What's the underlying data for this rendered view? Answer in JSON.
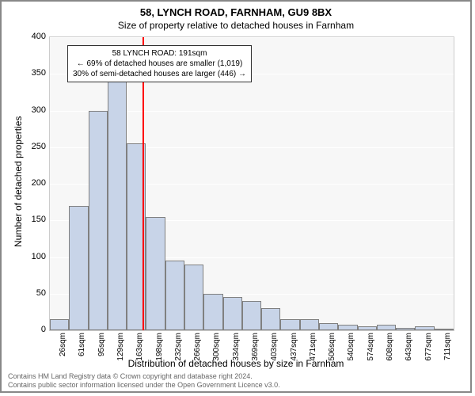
{
  "header": {
    "address": "58, LYNCH ROAD, FARNHAM, GU9 8BX",
    "subtitle": "Size of property relative to detached houses in Farnham"
  },
  "chart": {
    "type": "histogram",
    "ylabel": "Number of detached properties",
    "xlabel": "Distribution of detached houses by size in Farnham",
    "ylim": [
      0,
      400
    ],
    "ytick_step": 50,
    "background_color": "#f7f7f7",
    "grid_color": "#ffffff",
    "bar_fill": "#c8d4e8",
    "bar_stroke": "#808080",
    "marker_color": "#ff0000",
    "marker_x_value": 191,
    "categories": [
      "26sqm",
      "61sqm",
      "95sqm",
      "129sqm",
      "163sqm",
      "198sqm",
      "232sqm",
      "266sqm",
      "300sqm",
      "334sqm",
      "369sqm",
      "403sqm",
      "437sqm",
      "471sqm",
      "506sqm",
      "540sqm",
      "574sqm",
      "608sqm",
      "643sqm",
      "677sqm",
      "711sqm"
    ],
    "values": [
      15,
      170,
      300,
      340,
      255,
      155,
      95,
      90,
      50,
      45,
      40,
      30,
      15,
      15,
      10,
      8,
      5,
      8,
      3,
      5,
      2
    ]
  },
  "annotation": {
    "line1": "58 LYNCH ROAD: 191sqm",
    "line2": "← 69% of detached houses are smaller (1,019)",
    "line3": "30% of semi-detached houses are larger (446) →"
  },
  "footer": {
    "line1": "Contains HM Land Registry data © Crown copyright and database right 2024.",
    "line2": "Contains public sector information licensed under the Open Government Licence v3.0."
  }
}
